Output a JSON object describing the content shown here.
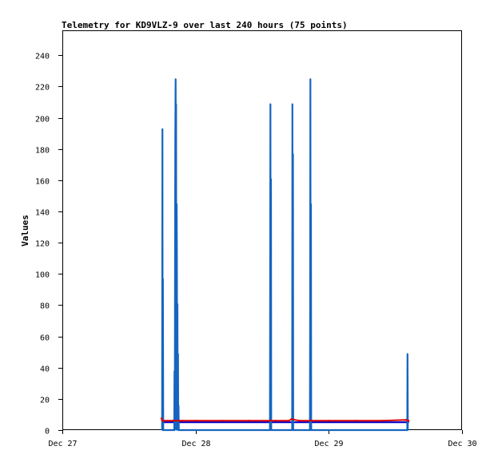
{
  "chart_data": {
    "type": "line",
    "title": "Telemetry for KD9VLZ-9 over last 240 hours (75 points)",
    "xlabel": "",
    "ylabel": "Values",
    "x_ticks": [
      "Dec 27",
      "Dec 28",
      "Dec 29",
      "Dec 30"
    ],
    "x_range_days": [
      0,
      3
    ],
    "ylim": [
      0,
      256
    ],
    "y_ticks": [
      0,
      20,
      40,
      60,
      80,
      100,
      120,
      140,
      160,
      180,
      200,
      220,
      240
    ],
    "grid": false,
    "legend": "none",
    "series": [
      {
        "color": "#0000cc",
        "x": [
          0.75,
          0.75,
          1.23,
          1.23,
          1.6,
          1.6,
          1.77,
          1.77,
          2.6,
          2.6
        ],
        "values": [
          5,
          5,
          5,
          5,
          5,
          5,
          5,
          5,
          5,
          5
        ]
      },
      {
        "color": "#1565c0",
        "x": [
          0.749,
          0.751,
          0.753,
          0.755,
          0.757,
          0.759,
          0.84,
          0.842,
          0.844,
          0.846,
          0.848,
          0.85,
          0.852,
          0.854,
          0.856,
          0.858,
          0.86,
          0.862,
          0.864,
          0.866,
          0.868,
          0.87,
          0.872,
          0.874,
          0.876,
          0.878,
          0.88,
          0.882,
          0.884,
          1.558,
          1.56,
          1.562,
          1.564,
          1.566,
          1.568,
          1.725,
          1.727,
          1.729,
          1.731,
          1.733,
          1.858,
          1.86,
          1.862,
          1.864,
          1.866,
          1.868,
          2.589,
          2.591,
          2.593,
          2.595
        ],
        "values": [
          0,
          193,
          0,
          97,
          0,
          0,
          0,
          38,
          0,
          113,
          187,
          225,
          177,
          209,
          0,
          145,
          113,
          0,
          81,
          0,
          49,
          0,
          16,
          0,
          0,
          0,
          0,
          0,
          0,
          0,
          105,
          209,
          0,
          161,
          0,
          0,
          209,
          0,
          177,
          0,
          0,
          81,
          225,
          0,
          145,
          0,
          0,
          49,
          0,
          0
        ]
      },
      {
        "color": "#dd0000",
        "x": [
          0.744,
          0.75,
          0.79,
          0.83,
          0.87,
          0.9,
          1.0,
          1.2,
          1.4,
          1.56,
          1.6,
          1.7,
          1.72,
          1.78,
          1.86,
          2.0,
          2.2,
          2.4,
          2.58,
          2.6
        ],
        "values": [
          7.5,
          6,
          6,
          6,
          6,
          6,
          6,
          6,
          6,
          6,
          6,
          6,
          7,
          6,
          6,
          6,
          6,
          6,
          6.5,
          6
        ]
      }
    ]
  }
}
